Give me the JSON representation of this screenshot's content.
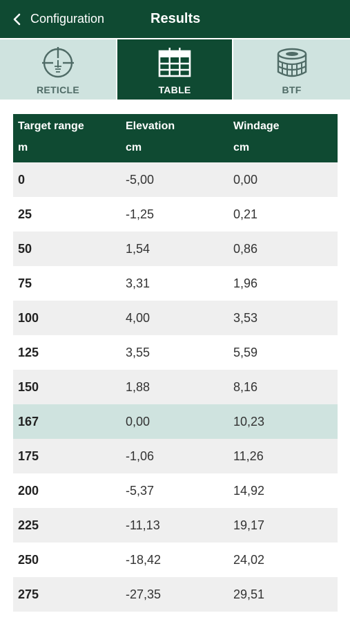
{
  "navbar": {
    "back_label": "Configuration",
    "title": "Results"
  },
  "tabs": [
    {
      "label": "RETICLE",
      "icon": "reticle-icon",
      "active": false
    },
    {
      "label": "TABLE",
      "icon": "table-icon",
      "active": true
    },
    {
      "label": "BTF",
      "icon": "turret-icon",
      "active": false
    }
  ],
  "table": {
    "headers": [
      {
        "title": "Target range",
        "unit": "m"
      },
      {
        "title": "Elevation",
        "unit": "cm"
      },
      {
        "title": "Windage",
        "unit": "cm"
      }
    ],
    "rows": [
      {
        "range": "0",
        "elevation": "-5,00",
        "windage": "0,00",
        "highlight": false
      },
      {
        "range": "25",
        "elevation": "-1,25",
        "windage": "0,21",
        "highlight": false
      },
      {
        "range": "50",
        "elevation": "1,54",
        "windage": "0,86",
        "highlight": false
      },
      {
        "range": "75",
        "elevation": "3,31",
        "windage": "1,96",
        "highlight": false
      },
      {
        "range": "100",
        "elevation": "4,00",
        "windage": "3,53",
        "highlight": false
      },
      {
        "range": "125",
        "elevation": "3,55",
        "windage": "5,59",
        "highlight": false
      },
      {
        "range": "150",
        "elevation": "1,88",
        "windage": "8,16",
        "highlight": false
      },
      {
        "range": "167",
        "elevation": "0,00",
        "windage": "10,23",
        "highlight": true
      },
      {
        "range": "175",
        "elevation": "-1,06",
        "windage": "11,26",
        "highlight": false
      },
      {
        "range": "200",
        "elevation": "-5,37",
        "windage": "14,92",
        "highlight": false
      },
      {
        "range": "225",
        "elevation": "-11,13",
        "windage": "19,17",
        "highlight": false
      },
      {
        "range": "250",
        "elevation": "-18,42",
        "windage": "24,02",
        "highlight": false
      },
      {
        "range": "275",
        "elevation": "-27,35",
        "windage": "29,51",
        "highlight": false
      }
    ]
  },
  "colors": {
    "brand_green": "#0f4a32",
    "tab_inactive": "#cfe3df",
    "row_alt": "#efefef",
    "row_highlight": "#cfe3df"
  }
}
